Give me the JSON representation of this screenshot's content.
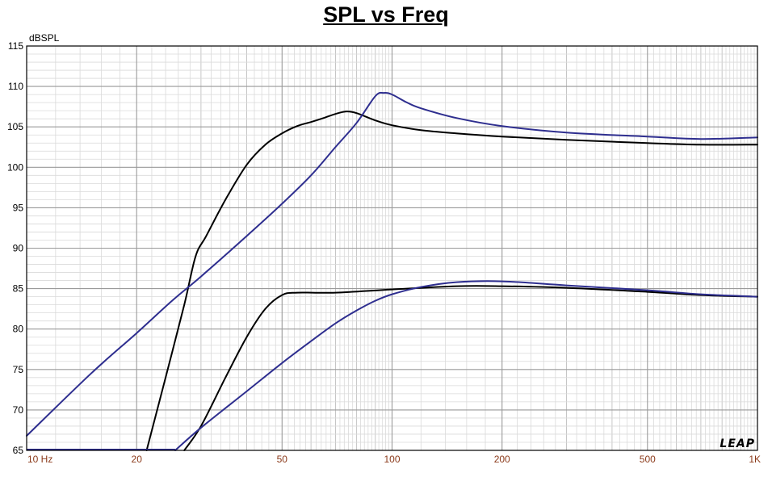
{
  "chart_data": {
    "type": "line",
    "title": "SPL vs Freq",
    "ylabel": "dBSPL",
    "xlabel": "",
    "xscale": "log",
    "xlim": [
      10,
      1000
    ],
    "ylim": [
      65,
      115
    ],
    "y_ticks": [
      65,
      70,
      75,
      80,
      85,
      90,
      95,
      100,
      105,
      110,
      115
    ],
    "x_ticks": [
      {
        "value": 10,
        "label": "10  Hz"
      },
      {
        "value": 20,
        "label": "20"
      },
      {
        "value": 50,
        "label": "50"
      },
      {
        "value": 100,
        "label": "100"
      },
      {
        "value": 200,
        "label": "200"
      },
      {
        "value": 500,
        "label": "500"
      },
      {
        "value": 1000,
        "label": "1K"
      }
    ],
    "grid": true,
    "legend": "none",
    "watermark": "LEAP",
    "series": [
      {
        "color": "#000000",
        "points": [
          [
            21.3,
            65
          ],
          [
            24,
            74
          ],
          [
            27,
            83
          ],
          [
            29,
            89
          ],
          [
            31,
            91.5
          ],
          [
            35,
            96
          ],
          [
            40,
            100.3
          ],
          [
            45,
            102.8
          ],
          [
            50,
            104.2
          ],
          [
            55,
            105.1
          ],
          [
            60,
            105.6
          ],
          [
            65,
            106.1
          ],
          [
            70,
            106.6
          ],
          [
            75,
            106.9
          ],
          [
            80,
            106.7
          ],
          [
            90,
            105.8
          ],
          [
            100,
            105.2
          ],
          [
            120,
            104.6
          ],
          [
            150,
            104.2
          ],
          [
            200,
            103.8
          ],
          [
            300,
            103.4
          ],
          [
            500,
            103
          ],
          [
            700,
            102.8
          ],
          [
            1000,
            102.8
          ]
        ]
      },
      {
        "color": "#2e2e8f",
        "points": [
          [
            10,
            66.8
          ],
          [
            15,
            74.5
          ],
          [
            20,
            79.5
          ],
          [
            25,
            83.5
          ],
          [
            30,
            86.5
          ],
          [
            40,
            91.5
          ],
          [
            50,
            95.5
          ],
          [
            60,
            99
          ],
          [
            70,
            102.5
          ],
          [
            80,
            105.5
          ],
          [
            90,
            108.8
          ],
          [
            95,
            109.2
          ],
          [
            100,
            109
          ],
          [
            110,
            108
          ],
          [
            120,
            107.3
          ],
          [
            150,
            106.1
          ],
          [
            200,
            105.1
          ],
          [
            300,
            104.3
          ],
          [
            500,
            103.8
          ],
          [
            700,
            103.5
          ],
          [
            1000,
            103.7
          ]
        ]
      },
      {
        "color": "#000000",
        "points": [
          [
            27,
            65
          ],
          [
            30,
            68
          ],
          [
            35,
            74
          ],
          [
            40,
            79
          ],
          [
            45,
            82.5
          ],
          [
            50,
            84.2
          ],
          [
            55,
            84.5
          ],
          [
            70,
            84.5
          ],
          [
            100,
            84.9
          ],
          [
            150,
            85.3
          ],
          [
            200,
            85.3
          ],
          [
            300,
            85.1
          ],
          [
            500,
            84.6
          ],
          [
            700,
            84.2
          ],
          [
            1000,
            84
          ]
        ]
      },
      {
        "color": "#2e2e8f",
        "points": [
          [
            25.5,
            65
          ],
          [
            30,
            67.8
          ],
          [
            40,
            72.3
          ],
          [
            50,
            75.8
          ],
          [
            60,
            78.5
          ],
          [
            70,
            80.7
          ],
          [
            80,
            82.3
          ],
          [
            90,
            83.5
          ],
          [
            100,
            84.3
          ],
          [
            120,
            85.2
          ],
          [
            150,
            85.8
          ],
          [
            200,
            85.9
          ],
          [
            300,
            85.4
          ],
          [
            500,
            84.8
          ],
          [
            700,
            84.3
          ],
          [
            1000,
            84
          ]
        ]
      }
    ]
  }
}
